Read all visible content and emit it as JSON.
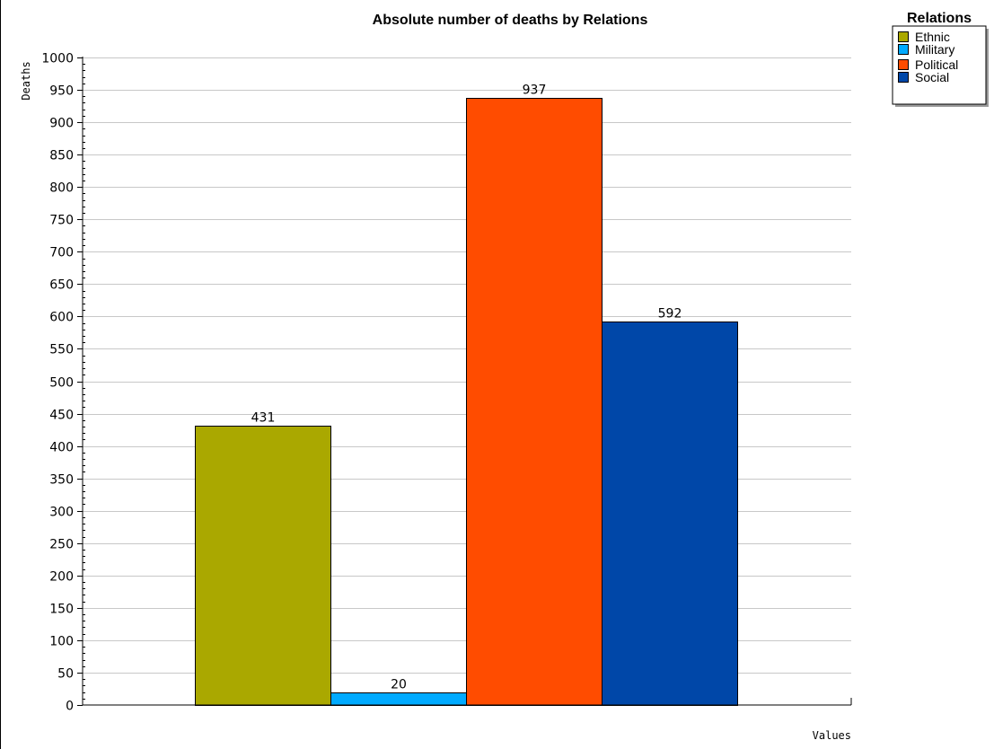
{
  "chart_data": {
    "type": "bar",
    "title": "Absolute number of deaths by Relations",
    "xlabel": "Values",
    "ylabel": "Deaths",
    "ylim": [
      0,
      1000
    ],
    "ytick_step": 50,
    "grid": true,
    "legend": {
      "title": "Relations",
      "placement": "top-right"
    },
    "categories": [
      ""
    ],
    "series": [
      {
        "name": "Ethnic",
        "values": [
          431
        ],
        "color": "#aaa800"
      },
      {
        "name": "Military",
        "values": [
          20
        ],
        "color": "#00aaff"
      },
      {
        "name": "Political",
        "values": [
          937
        ],
        "color": "#ff4c00"
      },
      {
        "name": "Social",
        "values": [
          592
        ],
        "color": "#0047a8"
      }
    ]
  }
}
